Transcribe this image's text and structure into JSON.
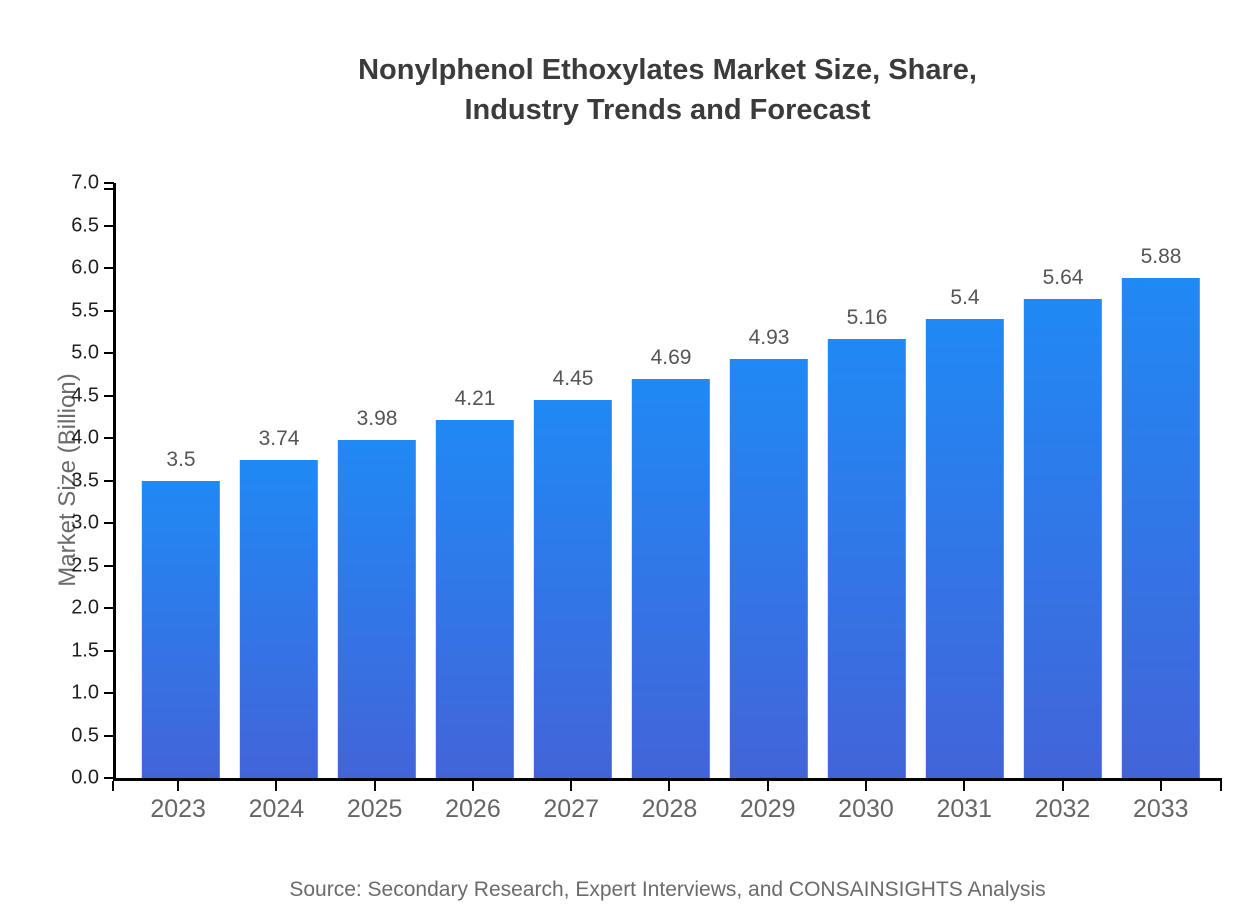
{
  "title": {
    "line1": "Nonylphenol Ethoxylates Market Size, Share,",
    "line2": "Industry Trends and Forecast"
  },
  "chart_data": {
    "type": "bar",
    "title": "Nonylphenol Ethoxylates Market Size, Share, Industry Trends and Forecast",
    "categories": [
      "2023",
      "2024",
      "2025",
      "2026",
      "2027",
      "2028",
      "2029",
      "2030",
      "2031",
      "2032",
      "2033"
    ],
    "values": [
      3.5,
      3.74,
      3.98,
      4.21,
      4.45,
      4.69,
      4.93,
      5.16,
      5.4,
      5.64,
      5.88
    ],
    "value_labels": [
      "3.5",
      "3.74",
      "3.98",
      "4.21",
      "4.45",
      "4.69",
      "4.93",
      "5.16",
      "5.4",
      "5.64",
      "5.88"
    ],
    "xlabel": "",
    "ylabel": "Market Size (Billion)",
    "ylim": [
      0,
      7
    ],
    "y_ticks": [
      "0.0",
      "0.5",
      "1.0",
      "1.5",
      "2.0",
      "2.5",
      "3.0",
      "3.5",
      "4.0",
      "4.5",
      "5.0",
      "5.5",
      "6.0",
      "6.5",
      "7.0"
    ],
    "grid": false,
    "legend": false,
    "bar_color_top": "#2089f4",
    "bar_color_bottom": "#4364d9"
  },
  "colors": {
    "title_text": "#3b3b3b",
    "axis_line": "#000000",
    "y_tick_text": "#1f1f1f",
    "x_tick_text": "#666666",
    "bar_value_text": "#555555",
    "axis_title_text": "#6b6b6b",
    "source_text": "#6b6b6b",
    "background": "#ffffff"
  },
  "source_note": "Source: Secondary Research, Expert Interviews, and CONSAINSIGHTS Analysis"
}
